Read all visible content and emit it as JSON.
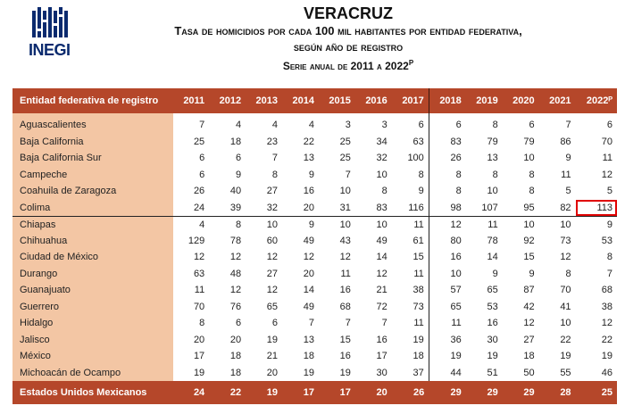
{
  "logo": {
    "text": "INEGI"
  },
  "header": {
    "state": "VERACRUZ",
    "title_line1": "Tasa de homicidios por cada 100 mil habitantes por entidad federativa,",
    "title_line2": "según año de registro",
    "title_line3": "Serie anual de 2011 a 2022",
    "title_line3_sup": "P"
  },
  "table": {
    "entity_header": "Entidad federativa de registro",
    "years": [
      "2011",
      "2012",
      "2013",
      "2014",
      "2015",
      "2016",
      "2017",
      "2018",
      "2019",
      "2020",
      "2021",
      "2022ᴾ"
    ],
    "rows": [
      {
        "name": "Aguascalientes",
        "values": [
          "7",
          "4",
          "4",
          "4",
          "3",
          "3",
          "6",
          "6",
          "8",
          "6",
          "7",
          "6"
        ]
      },
      {
        "name": "Baja California",
        "values": [
          "25",
          "18",
          "23",
          "22",
          "25",
          "34",
          "63",
          "83",
          "79",
          "79",
          "86",
          "70"
        ]
      },
      {
        "name": "Baja California Sur",
        "values": [
          "6",
          "6",
          "7",
          "13",
          "25",
          "32",
          "100",
          "26",
          "13",
          "10",
          "9",
          "11"
        ]
      },
      {
        "name": "Campeche",
        "values": [
          "6",
          "9",
          "8",
          "9",
          "7",
          "10",
          "8",
          "8",
          "8",
          "8",
          "11",
          "12"
        ]
      },
      {
        "name": "Coahuila de Zaragoza",
        "values": [
          "26",
          "40",
          "27",
          "16",
          "10",
          "8",
          "9",
          "8",
          "10",
          "8",
          "5",
          "5"
        ]
      },
      {
        "name": "Colima",
        "values": [
          "24",
          "39",
          "32",
          "20",
          "31",
          "83",
          "116",
          "98",
          "107",
          "95",
          "82",
          "113"
        ]
      },
      {
        "name": "Chiapas",
        "values": [
          "4",
          "8",
          "10",
          "9",
          "10",
          "10",
          "11",
          "12",
          "11",
          "10",
          "10",
          "9"
        ]
      },
      {
        "name": "Chihuahua",
        "values": [
          "129",
          "78",
          "60",
          "49",
          "43",
          "49",
          "61",
          "80",
          "78",
          "92",
          "73",
          "53"
        ]
      },
      {
        "name": "Ciudad de México",
        "values": [
          "12",
          "12",
          "12",
          "12",
          "12",
          "14",
          "15",
          "16",
          "14",
          "15",
          "12",
          "8"
        ]
      },
      {
        "name": "Durango",
        "values": [
          "63",
          "48",
          "27",
          "20",
          "11",
          "12",
          "11",
          "10",
          "9",
          "9",
          "8",
          "7"
        ]
      },
      {
        "name": "Guanajuato",
        "values": [
          "11",
          "12",
          "12",
          "14",
          "16",
          "21",
          "38",
          "57",
          "65",
          "87",
          "70",
          "68"
        ]
      },
      {
        "name": "Guerrero",
        "values": [
          "70",
          "76",
          "65",
          "49",
          "68",
          "72",
          "73",
          "65",
          "53",
          "42",
          "41",
          "38"
        ]
      },
      {
        "name": "Hidalgo",
        "values": [
          "8",
          "6",
          "6",
          "7",
          "7",
          "7",
          "11",
          "11",
          "16",
          "12",
          "10",
          "12"
        ]
      },
      {
        "name": "Jalisco",
        "values": [
          "20",
          "20",
          "19",
          "13",
          "15",
          "16",
          "19",
          "36",
          "30",
          "27",
          "22",
          "22"
        ]
      },
      {
        "name": "México",
        "values": [
          "17",
          "18",
          "21",
          "18",
          "16",
          "17",
          "18",
          "19",
          "19",
          "18",
          "19",
          "19"
        ]
      },
      {
        "name": "Michoacán de Ocampo",
        "values": [
          "19",
          "18",
          "20",
          "19",
          "19",
          "30",
          "37",
          "44",
          "51",
          "50",
          "55",
          "46"
        ]
      }
    ],
    "total": {
      "name": "Estados Unidos Mexicanos",
      "values": [
        "24",
        "22",
        "19",
        "17",
        "17",
        "20",
        "26",
        "29",
        "29",
        "29",
        "28",
        "25"
      ]
    }
  },
  "colors": {
    "header_bg": "#b5472a",
    "entity_bg": "#f3c6a4",
    "highlight": "#e00000",
    "logo": "#0a2a6e"
  }
}
